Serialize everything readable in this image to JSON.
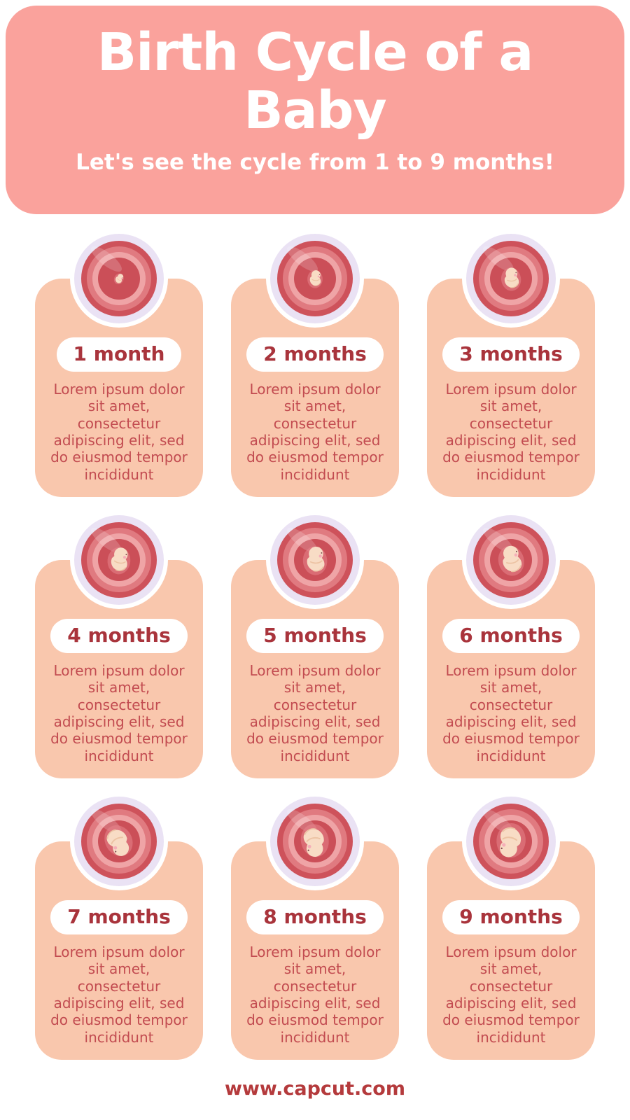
{
  "header": {
    "title": "Birth Cycle of a Baby",
    "subtitle": "Let's see the cycle from 1 to 9 months!",
    "background_color": "#FAA29C",
    "text_color": "#FFFFFF"
  },
  "cards": [
    {
      "label": "1 month",
      "icon": "fetus-month-1",
      "description": "Lorem ipsum dolor sit amet, consectetur adipiscing elit, sed do eiusmod tempor incididunt"
    },
    {
      "label": "2 months",
      "icon": "fetus-month-2",
      "description": "Lorem ipsum dolor sit amet, consectetur adipiscing elit, sed do eiusmod tempor incididunt"
    },
    {
      "label": "3 months",
      "icon": "fetus-month-3",
      "description": "Lorem ipsum dolor sit amet, consectetur adipiscing elit, sed do eiusmod tempor incididunt"
    },
    {
      "label": "4 months",
      "icon": "fetus-month-4",
      "description": "Lorem ipsum dolor sit amet, consectetur adipiscing elit, sed do eiusmod tempor incididunt"
    },
    {
      "label": "5 months",
      "icon": "fetus-month-5",
      "description": "Lorem ipsum dolor sit amet, consectetur adipiscing elit, sed do eiusmod tempor incididunt"
    },
    {
      "label": "6 months",
      "icon": "fetus-month-6",
      "description": "Lorem ipsum dolor sit amet, consectetur adipiscing elit, sed do eiusmod tempor incididunt"
    },
    {
      "label": "7 months",
      "icon": "fetus-month-7",
      "description": "Lorem ipsum dolor sit amet, consectetur adipiscing elit, sed do eiusmod tempor incididunt"
    },
    {
      "label": "8 months",
      "icon": "fetus-month-8",
      "description": "Lorem ipsum dolor sit amet, consectetur adipiscing elit, sed do eiusmod tempor incididunt"
    },
    {
      "label": "9 months",
      "icon": "fetus-month-9",
      "description": "Lorem ipsum dolor sit amet, consectetur adipiscing elit, sed do eiusmod tempor incididunt"
    }
  ],
  "footer": {
    "url_text": "www.capcut.com"
  },
  "colors": {
    "card_background": "#F9C7AD",
    "pill_background": "#FFFFFF",
    "pill_text": "#A9343C",
    "body_text": "#C24B50",
    "footer_text": "#B43A3C",
    "womb_ring_lavender": "#EAE2F4",
    "womb_red_dark": "#CE525B",
    "womb_pink_light": "#EFA4A6",
    "fetus_skin": "#F8DCC5"
  }
}
